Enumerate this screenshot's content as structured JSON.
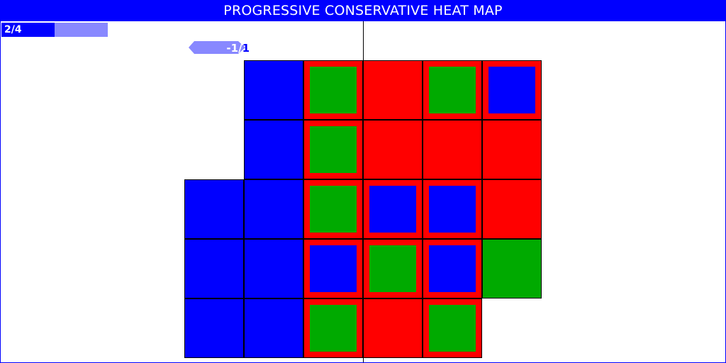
{
  "title": "PROGRESSIVE CONSERVATIVE HEAT MAP",
  "progress": {
    "label": "2/4",
    "fraction": 0.5
  },
  "score_tag": {
    "label": "-1/",
    "tail": "1"
  },
  "colors": {
    "blue": "#0000ff",
    "red": "#ff0000",
    "green": "#00aa00",
    "light_blue": "#8888ff",
    "white": "#ffffff"
  },
  "grid": {
    "columns": 6,
    "rows": 5,
    "cells": [
      [
        null,
        {
          "fill": "blue"
        },
        {
          "fill": "red",
          "inner": "green"
        },
        {
          "fill": "red"
        },
        {
          "fill": "red",
          "inner": "green"
        },
        {
          "fill": "red",
          "inner": "blue"
        }
      ],
      [
        null,
        {
          "fill": "blue"
        },
        {
          "fill": "red",
          "inner": "green"
        },
        {
          "fill": "red"
        },
        {
          "fill": "red"
        },
        {
          "fill": "red"
        }
      ],
      [
        {
          "fill": "blue"
        },
        {
          "fill": "blue"
        },
        {
          "fill": "red",
          "inner": "green"
        },
        {
          "fill": "red",
          "inner": "blue"
        },
        {
          "fill": "red",
          "inner": "blue"
        },
        {
          "fill": "red"
        }
      ],
      [
        {
          "fill": "blue"
        },
        {
          "fill": "blue"
        },
        {
          "fill": "red",
          "inner": "blue"
        },
        {
          "fill": "red",
          "inner": "green"
        },
        {
          "fill": "red",
          "inner": "blue"
        },
        {
          "fill": "green"
        }
      ],
      [
        {
          "fill": "blue"
        },
        {
          "fill": "blue"
        },
        {
          "fill": "red",
          "inner": "green"
        },
        {
          "fill": "red"
        },
        {
          "fill": "red",
          "inner": "green"
        },
        null
      ]
    ]
  }
}
